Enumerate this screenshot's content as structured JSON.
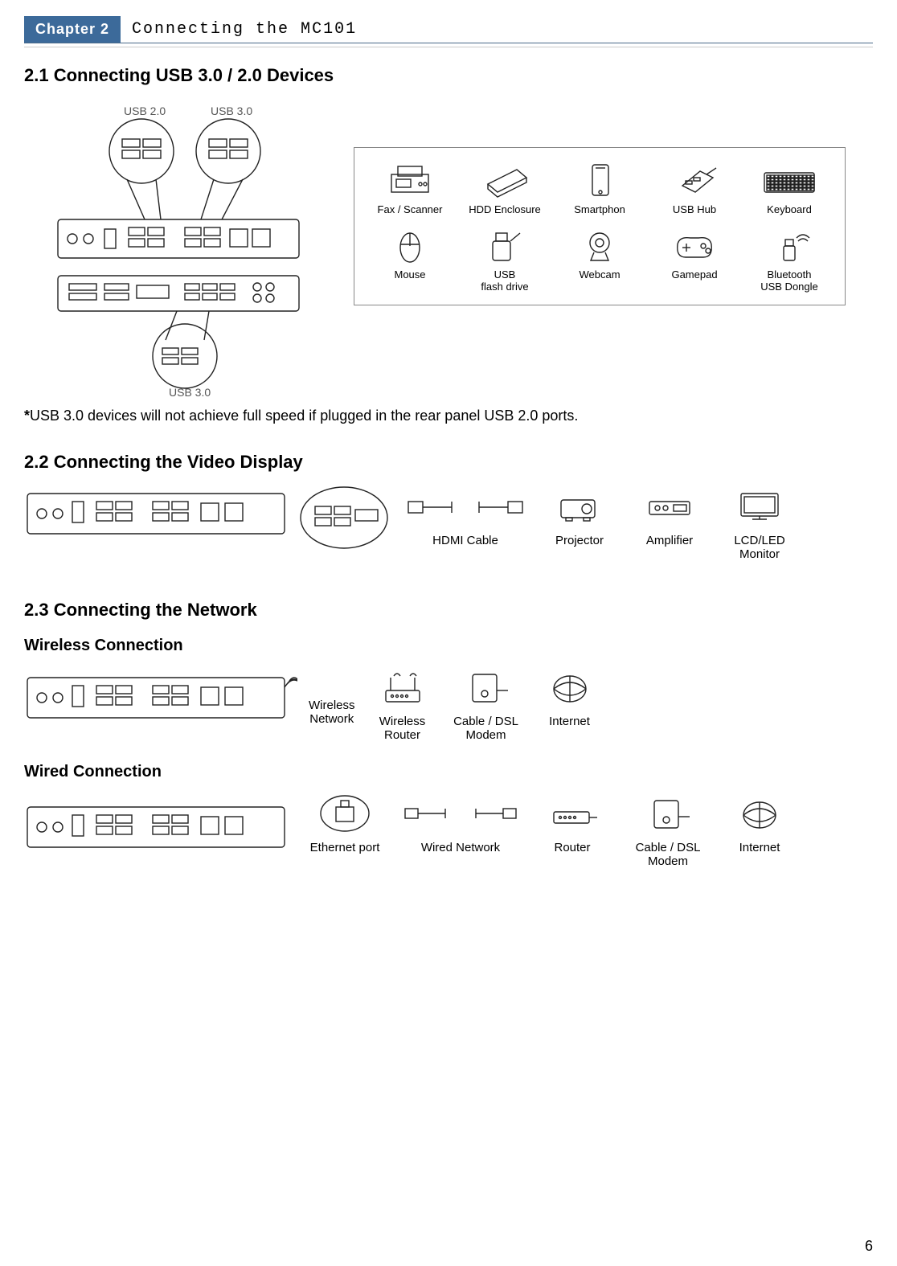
{
  "chapter": {
    "badge": "Chapter 2",
    "title": "Connecting the MC101"
  },
  "page_number": "6",
  "section_21": {
    "heading": "2.1 Connecting USB 3.0 / 2.0 Devices",
    "callouts": {
      "usb20": "USB 2.0",
      "usb30_top": "USB 3.0",
      "usb30_bottom": "USB 3.0"
    },
    "note_bold": "*",
    "note_text": "USB 3.0 devices will not achieve full speed if plugged in the rear panel USB 2.0 ports.",
    "devices_row1": [
      {
        "name": "fax-scanner",
        "label": "Fax / Scanner"
      },
      {
        "name": "hdd-enclosure",
        "label": "HDD Enclosure"
      },
      {
        "name": "smartphone",
        "label": "Smartphon"
      },
      {
        "name": "usb-hub",
        "label": "USB Hub"
      },
      {
        "name": "keyboard",
        "label": "Keyboard"
      }
    ],
    "devices_row2": [
      {
        "name": "mouse",
        "label": "Mouse"
      },
      {
        "name": "usb-flash",
        "label": "USB\nflash drive"
      },
      {
        "name": "webcam",
        "label": "Webcam"
      },
      {
        "name": "gamepad",
        "label": "Gamepad"
      },
      {
        "name": "bt-dongle",
        "label": "Bluetooth\nUSB Dongle"
      }
    ]
  },
  "section_22": {
    "heading": "2.2 Connecting the Video Display",
    "items": [
      {
        "name": "hdmi-cable",
        "label": "HDMI Cable"
      },
      {
        "name": "projector",
        "label": "Projector"
      },
      {
        "name": "amplifier",
        "label": "Amplifier"
      },
      {
        "name": "monitor",
        "label": "LCD/LED\nMonitor"
      }
    ]
  },
  "section_23": {
    "heading": "2.3 Connecting the Network",
    "wireless_h": "Wireless Connection",
    "wired_h": "Wired Connection",
    "wireless_label": "Wireless\nNetwork",
    "wireless_items": [
      {
        "name": "wireless-router",
        "label": "Wireless\nRouter"
      },
      {
        "name": "modem",
        "label": "Cable / DSL\nModem"
      },
      {
        "name": "internet",
        "label": "Internet"
      }
    ],
    "wired_items": [
      {
        "name": "ethernet-port",
        "label": "Ethernet port"
      },
      {
        "name": "wired-network",
        "label": "Wired Network"
      },
      {
        "name": "router",
        "label": "Router"
      },
      {
        "name": "modem",
        "label": "Cable / DSL\nModem"
      },
      {
        "name": "internet",
        "label": "Internet"
      }
    ]
  },
  "colors": {
    "accent": "#3c6a9a",
    "line": "#333333",
    "light": "#cccccc"
  }
}
